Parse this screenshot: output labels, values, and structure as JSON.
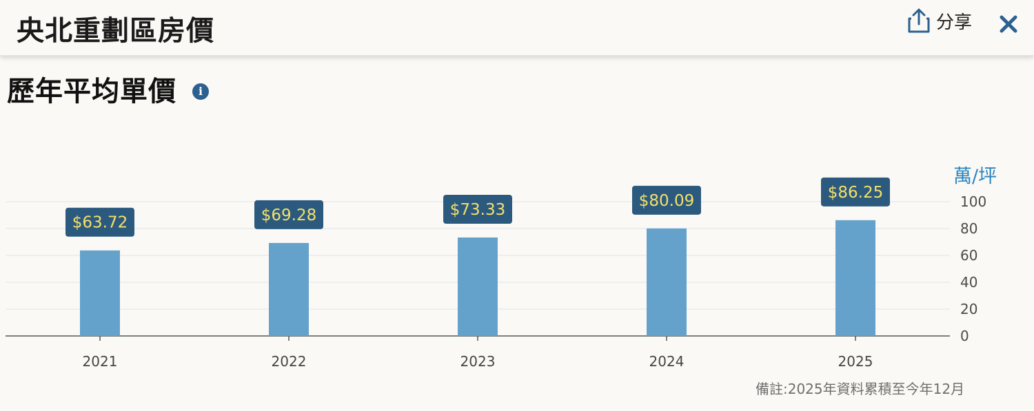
{
  "header": {
    "title": "央北重劃區房價",
    "share_label": "分享",
    "share_icon": "share-icon",
    "close_icon": "close-icon"
  },
  "section": {
    "title": "歷年平均單價",
    "info_icon": "info-icon"
  },
  "colors": {
    "bar": "#64a2cc",
    "label_bg": "#2c5a7e",
    "label_text": "#f5e06a",
    "unit_text": "#2a85c1",
    "accent": "#2b6090"
  },
  "chart_data": {
    "type": "bar",
    "categories": [
      "2021",
      "2022",
      "2023",
      "2024",
      "2025"
    ],
    "values": [
      63.72,
      69.28,
      73.33,
      80.09,
      86.25
    ],
    "data_labels": [
      "$63.72",
      "$69.28",
      "$73.33",
      "$80.09",
      "$86.25"
    ],
    "ylabel": "萬/坪",
    "ylim": [
      0,
      100
    ],
    "yticks": [
      "0",
      "20",
      "40",
      "60",
      "80",
      "100"
    ],
    "y_axis_position": "right",
    "grid": true
  },
  "note": "備註:2025年資料累積至今年12月"
}
